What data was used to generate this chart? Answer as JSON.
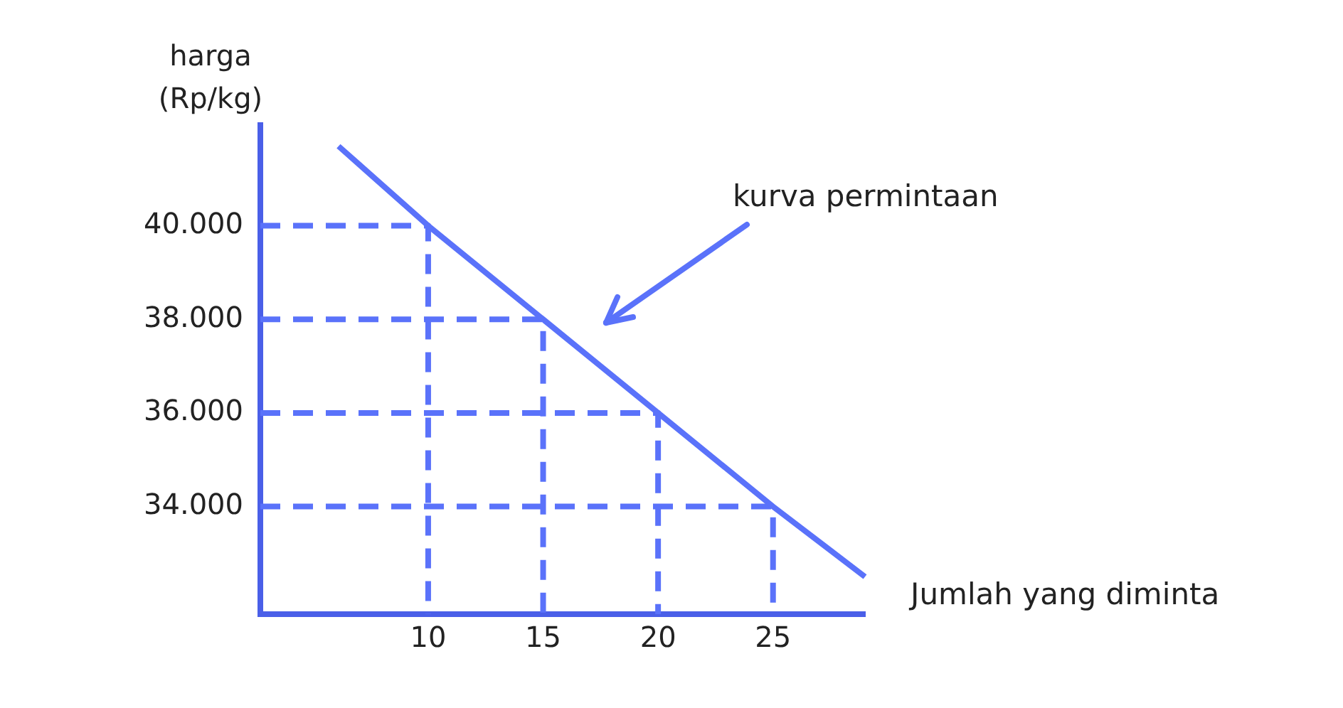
{
  "chart_data": {
    "type": "line",
    "xlabel": "Jumlah yang diminta",
    "ylabel": "harga (Rp/kg)",
    "xlim": [
      2.7,
      29
    ],
    "xticks": [
      10,
      15,
      20,
      25
    ],
    "ylim": [
      31700,
      42150
    ],
    "yticks": [
      {
        "value": 34000,
        "label": "34.000"
      },
      {
        "value": 36000,
        "label": "36.000"
      },
      {
        "value": 38000,
        "label": "38.000"
      },
      {
        "value": 40000,
        "label": "40.000"
      }
    ],
    "grid": false,
    "legend": false,
    "marker": "none",
    "annotations": [
      "kurva permintaan"
    ],
    "series": [
      {
        "color": "#5a72fa",
        "line_style": "solid",
        "x": [
          6.1,
          10,
          15,
          20,
          25,
          29
        ],
        "values": [
          41700,
          40000,
          38000,
          36000,
          34000,
          32500
        ]
      },
      {
        "color": "#5a72fa",
        "line_style": "dashed",
        "x": [
          2.7,
          10,
          10
        ],
        "values": [
          40000,
          40000,
          31700
        ]
      },
      {
        "color": "#5a72fa",
        "line_style": "dashed",
        "x": [
          2.7,
          15,
          15
        ],
        "values": [
          38000,
          38000,
          31700
        ]
      },
      {
        "color": "#5a72fa",
        "line_style": "dashed",
        "x": [
          2.7,
          20,
          20
        ],
        "values": [
          36000,
          36000,
          31700
        ]
      },
      {
        "color": "#5a72fa",
        "line_style": "dashed",
        "x": [
          2.7,
          25,
          25
        ],
        "values": [
          34000,
          34000,
          31700
        ]
      }
    ]
  }
}
